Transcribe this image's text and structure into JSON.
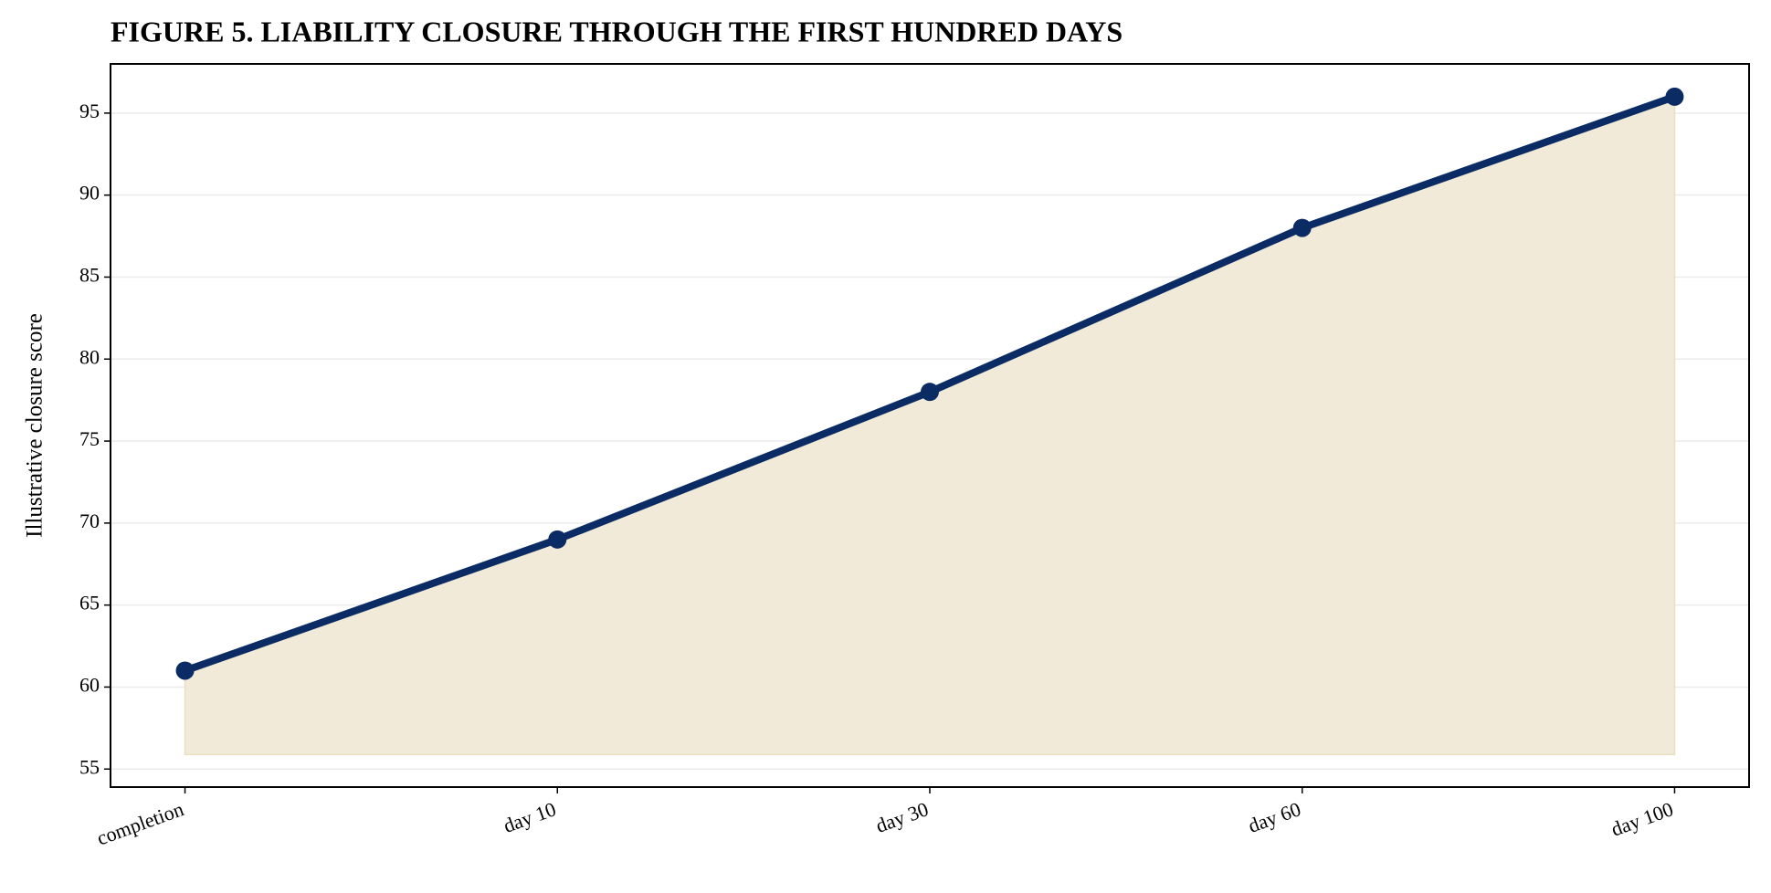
{
  "chart_data": {
    "type": "line",
    "title": "FIGURE 5. LIABILITY CLOSURE THROUGH THE FIRST HUNDRED DAYS",
    "y_label": "Illustrative closure score",
    "categories": [
      "completion",
      "day 10",
      "day 30",
      "day 60",
      "day 100"
    ],
    "values": [
      61,
      69,
      78,
      88,
      96
    ],
    "color": "#0a2b63",
    "fill_color": "#f2ead8",
    "ylim": [
      53.9,
      98.0
    ],
    "yticks": [
      55,
      60,
      65,
      70,
      75,
      80,
      85,
      90,
      95
    ],
    "grid": true
  }
}
